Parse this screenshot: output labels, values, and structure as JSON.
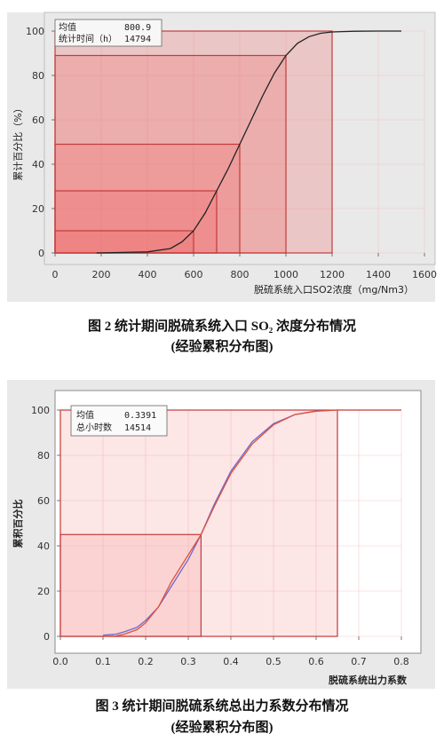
{
  "figures": [
    {
      "caption": "图 2 统计期间脱硫系统入口 SO₂ 浓度分布情况",
      "caption_sub": "(经验累积分布图)",
      "stats": {
        "mean_label": "均值",
        "mean_value": "800.9",
        "count_label": "统计时间（h）",
        "count_value": "14794"
      },
      "colors": {
        "background": "#e9e9e9",
        "frame": "#c43a3a",
        "curve": "#222222",
        "fill": "#f26a6a"
      }
    },
    {
      "caption": "图 3 统计期间脱硫系统总出力系数分布情况",
      "caption_sub": "(经验累积分布图)",
      "stats": {
        "mean_label": "均值",
        "mean_value": "0.3391",
        "count_label": "总小时数",
        "count_value": "14514"
      },
      "colors": {
        "background": "#e9e9e9",
        "frame": "#c43a3a",
        "curve_fit": "#6b6bd6",
        "curve_empirical": "#e0503a",
        "fill": "#f6a0a0"
      }
    }
  ],
  "chart_data": [
    {
      "type": "line",
      "xlabel": "脱硫系统入口SO2浓度（mg/Nm3）",
      "ylabel": "累计百分比（%）",
      "xlim": [
        0,
        1600
      ],
      "ylim": [
        0,
        100
      ],
      "xticks": [
        0,
        200,
        400,
        600,
        800,
        1000,
        1200,
        1400,
        1600
      ],
      "yticks": [
        0,
        20,
        40,
        60,
        80,
        100
      ],
      "grid": true,
      "x": [
        180,
        400,
        500,
        550,
        600,
        650,
        700,
        750,
        800,
        850,
        900,
        950,
        1000,
        1050,
        1100,
        1150,
        1200,
        1300,
        1400,
        1500
      ],
      "series": [
        {
          "values": [
            0,
            0.5,
            2,
            5,
            10,
            18,
            28,
            38,
            49,
            60,
            71,
            81,
            89,
            94.5,
            97.5,
            99,
            99.6,
            99.9,
            100,
            100
          ]
        }
      ],
      "reference_boxes": [
        {
          "x": 600,
          "y": 10
        },
        {
          "x": 700,
          "y": 28
        },
        {
          "x": 800,
          "y": 49
        },
        {
          "x": 1000,
          "y": 89
        },
        {
          "x": 1200,
          "y": 100
        }
      ]
    },
    {
      "type": "line",
      "xlabel": "脱硫系统出力系数",
      "ylabel": "累积百分比",
      "xlim": [
        0,
        0.8
      ],
      "ylim": [
        0,
        100
      ],
      "xticks": [
        "0.0",
        "0.1",
        "0.2",
        "0.3",
        "0.4",
        "0.5",
        "0.6",
        "0.7",
        "0.8"
      ],
      "yticks": [
        0,
        20,
        40,
        60,
        80,
        100
      ],
      "grid": true,
      "x": [
        0.1,
        0.13,
        0.15,
        0.18,
        0.2,
        0.23,
        0.26,
        0.3,
        0.33,
        0.36,
        0.4,
        0.45,
        0.5,
        0.55,
        0.6,
        0.65,
        0.7,
        0.8
      ],
      "series": [
        {
          "values": [
            0.5,
            1,
            2,
            4,
            7,
            13,
            22,
            34,
            45,
            58,
            73,
            86,
            94,
            98,
            99.6,
            100,
            100,
            100
          ]
        },
        {
          "values": [
            0,
            0.2,
            1,
            3,
            6,
            13,
            24,
            36,
            45,
            57,
            72,
            85,
            93.5,
            98,
            99.5,
            100,
            100,
            100
          ]
        }
      ],
      "reference_boxes": [
        {
          "x": 0.33,
          "y": 45
        },
        {
          "x": 0.65,
          "y": 100
        }
      ]
    }
  ]
}
